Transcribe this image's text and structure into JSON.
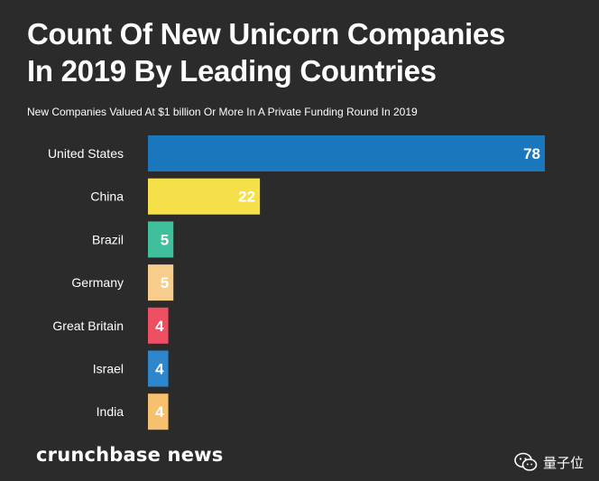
{
  "header": {
    "title_line1": "Count Of New Unicorn Companies",
    "title_line2": "In 2019 By Leading Countries",
    "subtitle": "New Companies Valued At $1 billion Or More In A Private Funding Round In 2019"
  },
  "chart_data": {
    "type": "bar",
    "orientation": "horizontal",
    "title": "Count Of New Unicorn Companies In 2019 By Leading Countries",
    "subtitle": "New Companies Valued At $1 billion Or More In A Private Funding Round In 2019",
    "xlabel": "",
    "ylabel": "",
    "xlim": [
      0,
      78
    ],
    "grid": false,
    "legend": "none",
    "categories": [
      "United States",
      "China",
      "Brazil",
      "Germany",
      "Great Britain",
      "Israel",
      "India"
    ],
    "values": [
      78,
      22,
      5,
      5,
      4,
      4,
      4
    ],
    "colors": [
      "#1a77bd",
      "#f5e04a",
      "#3fbf9c",
      "#f8cc8a",
      "#ee4f63",
      "#2e86cc",
      "#f6c06f"
    ]
  },
  "footer": {
    "brand": "crunchbase news",
    "watermark_text": "量子位",
    "watermark_icon": "wechat-icon"
  }
}
